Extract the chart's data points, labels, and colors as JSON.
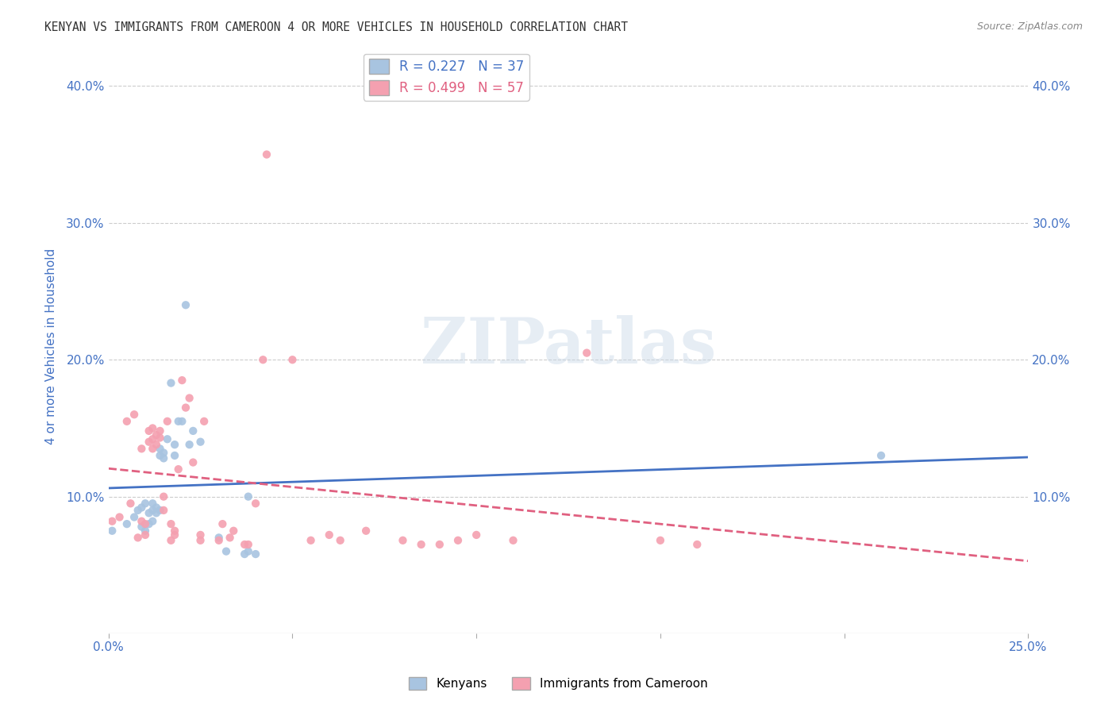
{
  "title": "KENYAN VS IMMIGRANTS FROM CAMEROON 4 OR MORE VEHICLES IN HOUSEHOLD CORRELATION CHART",
  "source": "Source: ZipAtlas.com",
  "ylabel_label": "4 or more Vehicles in Household",
  "xlim": [
    0.0,
    0.25
  ],
  "ylim": [
    0.0,
    0.42
  ],
  "kenyan_R": 0.227,
  "kenyan_N": 37,
  "cameroon_R": 0.499,
  "cameroon_N": 57,
  "kenyan_color": "#a8c4e0",
  "cameroon_color": "#f4a0b0",
  "trend_kenyan_color": "#4472c4",
  "trend_cameroon_color": "#e06080",
  "kenyan_x": [
    0.005,
    0.007,
    0.008,
    0.009,
    0.009,
    0.01,
    0.01,
    0.011,
    0.011,
    0.012,
    0.012,
    0.012,
    0.013,
    0.013,
    0.014,
    0.014,
    0.014,
    0.015,
    0.015,
    0.016,
    0.017,
    0.018,
    0.018,
    0.019,
    0.02,
    0.021,
    0.022,
    0.023,
    0.025,
    0.03,
    0.032,
    0.037,
    0.038,
    0.038,
    0.04,
    0.21,
    0.001
  ],
  "kenyan_y": [
    0.08,
    0.085,
    0.09,
    0.078,
    0.092,
    0.075,
    0.095,
    0.08,
    0.088,
    0.082,
    0.09,
    0.095,
    0.088,
    0.092,
    0.13,
    0.135,
    0.09,
    0.128,
    0.132,
    0.142,
    0.183,
    0.13,
    0.138,
    0.155,
    0.155,
    0.24,
    0.138,
    0.148,
    0.14,
    0.07,
    0.06,
    0.058,
    0.06,
    0.1,
    0.058,
    0.13,
    0.075
  ],
  "cameroon_x": [
    0.003,
    0.005,
    0.006,
    0.007,
    0.008,
    0.009,
    0.009,
    0.01,
    0.01,
    0.011,
    0.011,
    0.012,
    0.012,
    0.012,
    0.013,
    0.013,
    0.014,
    0.014,
    0.015,
    0.015,
    0.016,
    0.017,
    0.017,
    0.018,
    0.018,
    0.019,
    0.02,
    0.021,
    0.022,
    0.023,
    0.025,
    0.025,
    0.026,
    0.03,
    0.031,
    0.033,
    0.034,
    0.037,
    0.038,
    0.04,
    0.042,
    0.043,
    0.05,
    0.055,
    0.06,
    0.063,
    0.07,
    0.08,
    0.085,
    0.09,
    0.095,
    0.1,
    0.11,
    0.15,
    0.16,
    0.13,
    0.001
  ],
  "cameroon_y": [
    0.085,
    0.155,
    0.095,
    0.16,
    0.07,
    0.082,
    0.135,
    0.072,
    0.08,
    0.14,
    0.148,
    0.135,
    0.142,
    0.15,
    0.138,
    0.145,
    0.143,
    0.148,
    0.09,
    0.1,
    0.155,
    0.068,
    0.08,
    0.072,
    0.075,
    0.12,
    0.185,
    0.165,
    0.172,
    0.125,
    0.068,
    0.072,
    0.155,
    0.068,
    0.08,
    0.07,
    0.075,
    0.065,
    0.065,
    0.095,
    0.2,
    0.35,
    0.2,
    0.068,
    0.072,
    0.068,
    0.075,
    0.068,
    0.065,
    0.065,
    0.068,
    0.072,
    0.068,
    0.068,
    0.065,
    0.205,
    0.082
  ],
  "watermark": "ZIPatlas",
  "background_color": "#ffffff",
  "grid_color": "#cccccc",
  "title_color": "#333333",
  "axis_label_color": "#4472c4",
  "tick_color": "#4472c4",
  "y_ticks": [
    0.1,
    0.2,
    0.3,
    0.4
  ],
  "y_tick_labels": [
    "10.0%",
    "20.0%",
    "30.0%",
    "40.0%"
  ],
  "x_major_ticks": [
    0.0,
    0.05,
    0.1,
    0.15,
    0.2,
    0.25
  ]
}
